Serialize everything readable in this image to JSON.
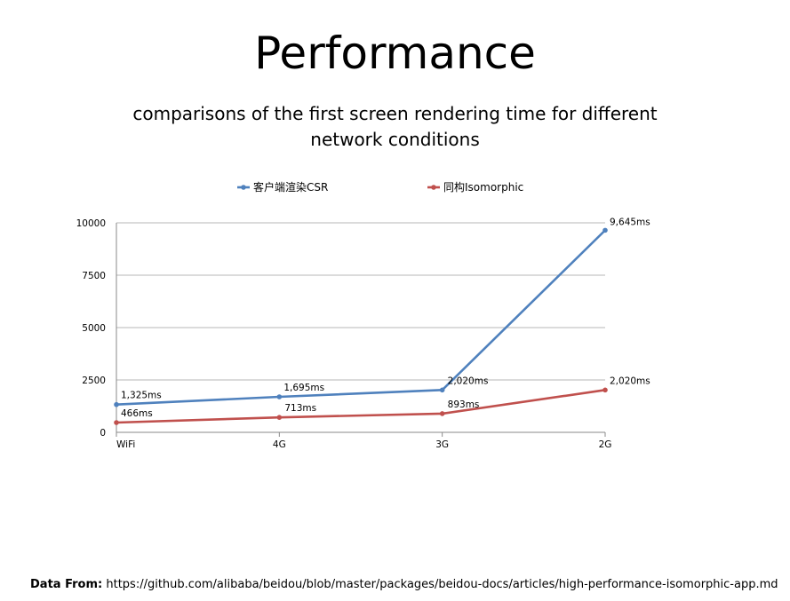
{
  "slide": {
    "title": "Performance",
    "subtitle": "comparisons of the first screen rendering time for different network conditions"
  },
  "chart_data": {
    "type": "line",
    "categories": [
      "WiFi",
      "4G",
      "3G",
      "2G"
    ],
    "series": [
      {
        "name": "客户端渲染CSR",
        "color": "#4F81BD",
        "values": [
          1325,
          1695,
          2020,
          9645
        ],
        "labels": [
          "1,325ms",
          "1,695ms",
          "2,020ms",
          "9,645ms"
        ]
      },
      {
        "name": "同构Isomorphic",
        "color": "#C0504D",
        "values": [
          466,
          713,
          893,
          2020
        ],
        "labels": [
          "466ms",
          "713ms",
          "893ms",
          "2,020ms"
        ]
      }
    ],
    "yticks": [
      0,
      2500,
      5000,
      7500,
      10000
    ],
    "ylim": [
      0,
      10000
    ],
    "grid": true,
    "legend_position": "top"
  },
  "footer": {
    "label": "Data From:",
    "url": "https://github.com/alibaba/beidou/blob/master/packages/beidou-docs/articles/high-performance-isomorphic-app.md"
  }
}
